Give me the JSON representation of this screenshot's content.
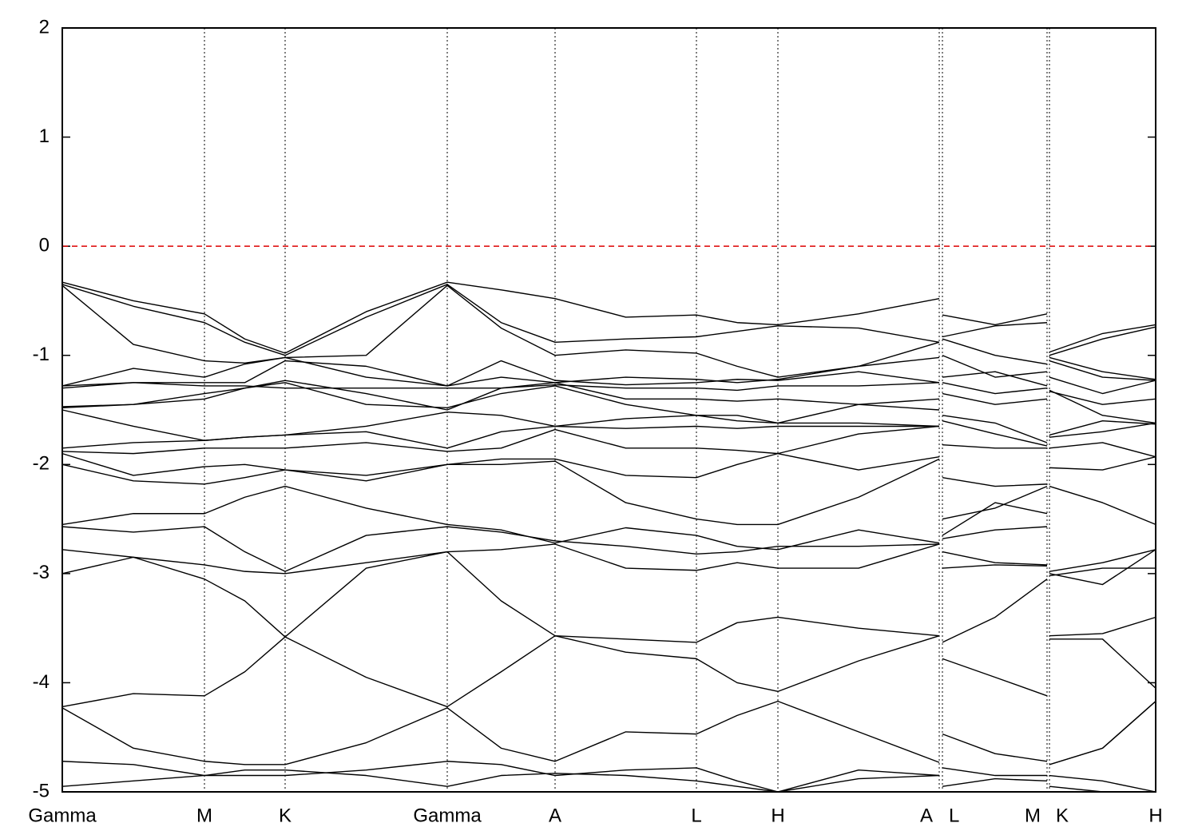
{
  "chart_data": {
    "type": "line",
    "xlim": [
      0,
      13.69
    ],
    "ylim": [
      -5,
      2
    ],
    "yticks": [
      -5,
      -4,
      -3,
      -2,
      -1,
      0,
      1,
      2
    ],
    "xticks": [
      {
        "value": 0,
        "label": "Gamma"
      },
      {
        "value": 1.78,
        "label": "M"
      },
      {
        "value": 2.79,
        "label": "K"
      },
      {
        "value": 4.82,
        "label": "Gamma"
      },
      {
        "value": 6.17,
        "label": "A"
      },
      {
        "value": 7.94,
        "label": "L"
      },
      {
        "value": 8.96,
        "label": "H"
      },
      {
        "value": 10.98,
        "label": "A"
      },
      {
        "value": 11.02,
        "label": "L"
      },
      {
        "value": 12.33,
        "label": "M"
      },
      {
        "value": 12.36,
        "label": "K"
      },
      {
        "value": 13.69,
        "label": "H"
      }
    ],
    "reference_line": {
      "value": 0,
      "color": "#dd0000"
    },
    "line_color": "#000000",
    "x": [
      0,
      0.89,
      1.78,
      2.285,
      2.79,
      3.805,
      4.82,
      5.495,
      6.17,
      7.055,
      7.94,
      8.45,
      8.96,
      9.97,
      10.98,
      11.0,
      11.02,
      11.68,
      12.33,
      12.345,
      12.36,
      13.025,
      13.69
    ],
    "series": [
      {
        "values": [
          -0.33,
          -0.5,
          -0.62,
          -0.85,
          -0.98,
          -0.6,
          -0.33,
          -0.4,
          -0.48,
          -0.65,
          -0.63,
          -0.7,
          -0.72,
          -0.62,
          -0.48,
          null,
          -0.63,
          -0.72,
          -0.62,
          null,
          -0.97,
          -0.8,
          -0.72
        ]
      },
      {
        "values": [
          -0.35,
          -0.55,
          -0.7,
          -0.88,
          -1.0,
          -0.65,
          -0.35,
          -0.7,
          -0.88,
          -0.85,
          -0.83,
          -0.78,
          -0.73,
          -0.75,
          -0.88,
          null,
          -0.83,
          -0.73,
          -0.7,
          null,
          -1.0,
          -0.85,
          -0.74
        ]
      },
      {
        "values": [
          -0.36,
          -0.9,
          -1.05,
          -1.07,
          -1.02,
          -1.0,
          -0.36,
          -0.75,
          -1.0,
          -0.95,
          -0.98,
          -1.1,
          -1.2,
          -1.1,
          -1.02,
          null,
          -0.85,
          -1.0,
          -1.08,
          null,
          -1.02,
          -1.15,
          -1.22
        ]
      },
      {
        "values": [
          -1.28,
          -1.12,
          -1.2,
          -1.08,
          -1.02,
          -1.2,
          -1.28,
          -1.2,
          -1.25,
          -1.2,
          -1.22,
          -1.25,
          -1.22,
          -1.1,
          -0.88,
          null,
          -1.0,
          -1.2,
          -1.15,
          null,
          -1.05,
          -1.2,
          -1.23
        ]
      },
      {
        "values": [
          -1.28,
          -1.25,
          -1.25,
          -1.25,
          -1.05,
          -1.1,
          -1.28,
          -1.05,
          -1.23,
          -1.27,
          -1.25,
          -1.22,
          -1.23,
          -1.15,
          -1.25,
          null,
          -1.2,
          -1.15,
          -1.28,
          null,
          -1.2,
          -1.35,
          -1.23
        ]
      },
      {
        "values": [
          -1.3,
          -1.25,
          -1.28,
          -1.28,
          -1.3,
          -1.3,
          -1.3,
          -1.3,
          -1.27,
          -1.3,
          -1.3,
          -1.32,
          -1.28,
          -1.28,
          -1.25,
          null,
          -1.25,
          -1.35,
          -1.3,
          null,
          -1.32,
          -1.55,
          -1.62
        ]
      },
      {
        "values": [
          -1.47,
          -1.45,
          -1.4,
          -1.3,
          -1.23,
          -1.35,
          -1.5,
          -1.3,
          -1.25,
          -1.4,
          -1.4,
          -1.42,
          -1.4,
          -1.45,
          -1.4,
          null,
          -1.35,
          -1.45,
          -1.4,
          null,
          -1.33,
          -1.45,
          -1.4
        ]
      },
      {
        "values": [
          -1.48,
          -1.45,
          -1.35,
          -1.3,
          -1.25,
          -1.45,
          -1.48,
          -1.35,
          -1.28,
          -1.45,
          -1.55,
          -1.55,
          -1.62,
          -1.45,
          -1.5,
          null,
          -1.55,
          -1.62,
          -1.8,
          null,
          -1.73,
          -1.6,
          -1.63
        ]
      },
      {
        "values": [
          -1.5,
          -1.65,
          -1.78,
          -1.75,
          -1.73,
          -1.65,
          -1.52,
          -1.55,
          -1.65,
          -1.58,
          -1.55,
          -1.6,
          -1.62,
          -1.62,
          -1.65,
          null,
          -1.6,
          -1.72,
          -1.83,
          null,
          -1.75,
          -1.7,
          -1.62
        ]
      },
      {
        "values": [
          -1.85,
          -1.8,
          -1.78,
          -1.75,
          -1.73,
          -1.7,
          -1.85,
          -1.7,
          -1.65,
          -1.67,
          -1.65,
          -1.67,
          -1.65,
          -1.65,
          -1.65,
          null,
          -1.82,
          -1.85,
          -1.85,
          null,
          -1.85,
          -1.8,
          -1.93
        ]
      },
      {
        "values": [
          -1.88,
          -1.9,
          -1.85,
          -1.85,
          -1.85,
          -1.8,
          -1.88,
          -1.85,
          -1.68,
          -1.85,
          -1.85,
          -1.87,
          -1.9,
          -1.72,
          -1.65,
          null,
          -2.12,
          -2.2,
          -2.18,
          null,
          -2.03,
          -2.05,
          -1.93
        ]
      },
      {
        "values": [
          -1.9,
          -2.1,
          -2.02,
          -2.0,
          -2.05,
          -2.1,
          -2.0,
          -1.95,
          -1.95,
          -2.1,
          -2.12,
          -2.0,
          -1.9,
          -2.05,
          -1.93,
          null,
          -2.5,
          -2.4,
          -2.2,
          null,
          -2.2,
          -2.35,
          -2.55
        ]
      },
      {
        "values": [
          -2.0,
          -2.15,
          -2.18,
          -2.12,
          -2.05,
          -2.15,
          -2.0,
          -2.0,
          -1.97,
          -2.35,
          -2.5,
          -2.55,
          -2.55,
          -2.3,
          -1.95,
          null,
          -2.65,
          -2.35,
          -2.45,
          null,
          -2.98,
          -2.9,
          -2.78
        ]
      },
      {
        "values": [
          -2.55,
          -2.45,
          -2.45,
          -2.3,
          -2.2,
          -2.4,
          -2.55,
          -2.6,
          -2.72,
          -2.58,
          -2.65,
          -2.75,
          -2.78,
          -2.6,
          -2.72,
          null,
          -2.68,
          -2.6,
          -2.57,
          null,
          -3.0,
          -3.1,
          -2.78
        ]
      },
      {
        "values": [
          -2.57,
          -2.62,
          -2.57,
          -2.8,
          -2.98,
          -2.65,
          -2.57,
          -2.62,
          -2.7,
          -2.75,
          -2.82,
          -2.8,
          -2.75,
          -2.75,
          -2.73,
          null,
          -2.8,
          -2.9,
          -2.92,
          null,
          -3.02,
          -2.95,
          -2.95
        ]
      },
      {
        "values": [
          -2.78,
          -2.85,
          -2.92,
          -2.98,
          -3.0,
          -2.9,
          -2.8,
          -2.78,
          -2.73,
          -2.95,
          -2.97,
          -2.9,
          -2.95,
          -2.95,
          -2.73,
          null,
          -2.95,
          -2.92,
          -2.93,
          null,
          -3.57,
          -3.55,
          -3.4
        ]
      },
      {
        "values": [
          -3.0,
          -2.85,
          -3.05,
          -3.25,
          -3.58,
          -2.95,
          -2.8,
          -3.25,
          -3.57,
          -3.6,
          -3.63,
          -3.45,
          -3.4,
          -3.5,
          -3.57,
          null,
          -3.63,
          -3.4,
          -3.05,
          null,
          -3.6,
          -3.6,
          -4.05
        ]
      },
      {
        "values": [
          -4.22,
          -4.1,
          -4.12,
          -3.9,
          -3.58,
          -3.95,
          -4.22,
          -3.9,
          -3.57,
          -3.72,
          -3.78,
          -4.0,
          -4.08,
          -3.8,
          -3.57,
          null,
          -3.78,
          -3.95,
          -4.12,
          null,
          -4.75,
          -4.6,
          -4.17
        ]
      },
      {
        "values": [
          -4.23,
          -4.6,
          -4.72,
          -4.75,
          -4.75,
          -4.55,
          -4.23,
          -4.6,
          -4.72,
          -4.45,
          -4.47,
          -4.3,
          -4.17,
          -4.45,
          -4.73,
          null,
          -4.47,
          -4.65,
          -4.72,
          null,
          -4.75,
          -4.6,
          -4.17
        ]
      },
      {
        "values": [
          -4.72,
          -4.75,
          -4.85,
          -4.85,
          -4.85,
          -4.8,
          -4.72,
          -4.75,
          -4.85,
          -4.8,
          -4.78,
          -4.9,
          -5.0,
          -4.8,
          -4.85,
          null,
          -4.78,
          -4.85,
          -4.85,
          null,
          -4.85,
          -4.9,
          -5.0
        ]
      },
      {
        "values": [
          -4.95,
          -4.9,
          -4.85,
          -4.8,
          -4.8,
          -4.85,
          -4.95,
          -4.85,
          -4.83,
          -4.85,
          -4.9,
          -4.95,
          -5.0,
          -4.88,
          -4.85,
          null,
          -4.95,
          -4.88,
          -4.9,
          null,
          -4.95,
          -5.0,
          -5.0
        ]
      }
    ]
  }
}
